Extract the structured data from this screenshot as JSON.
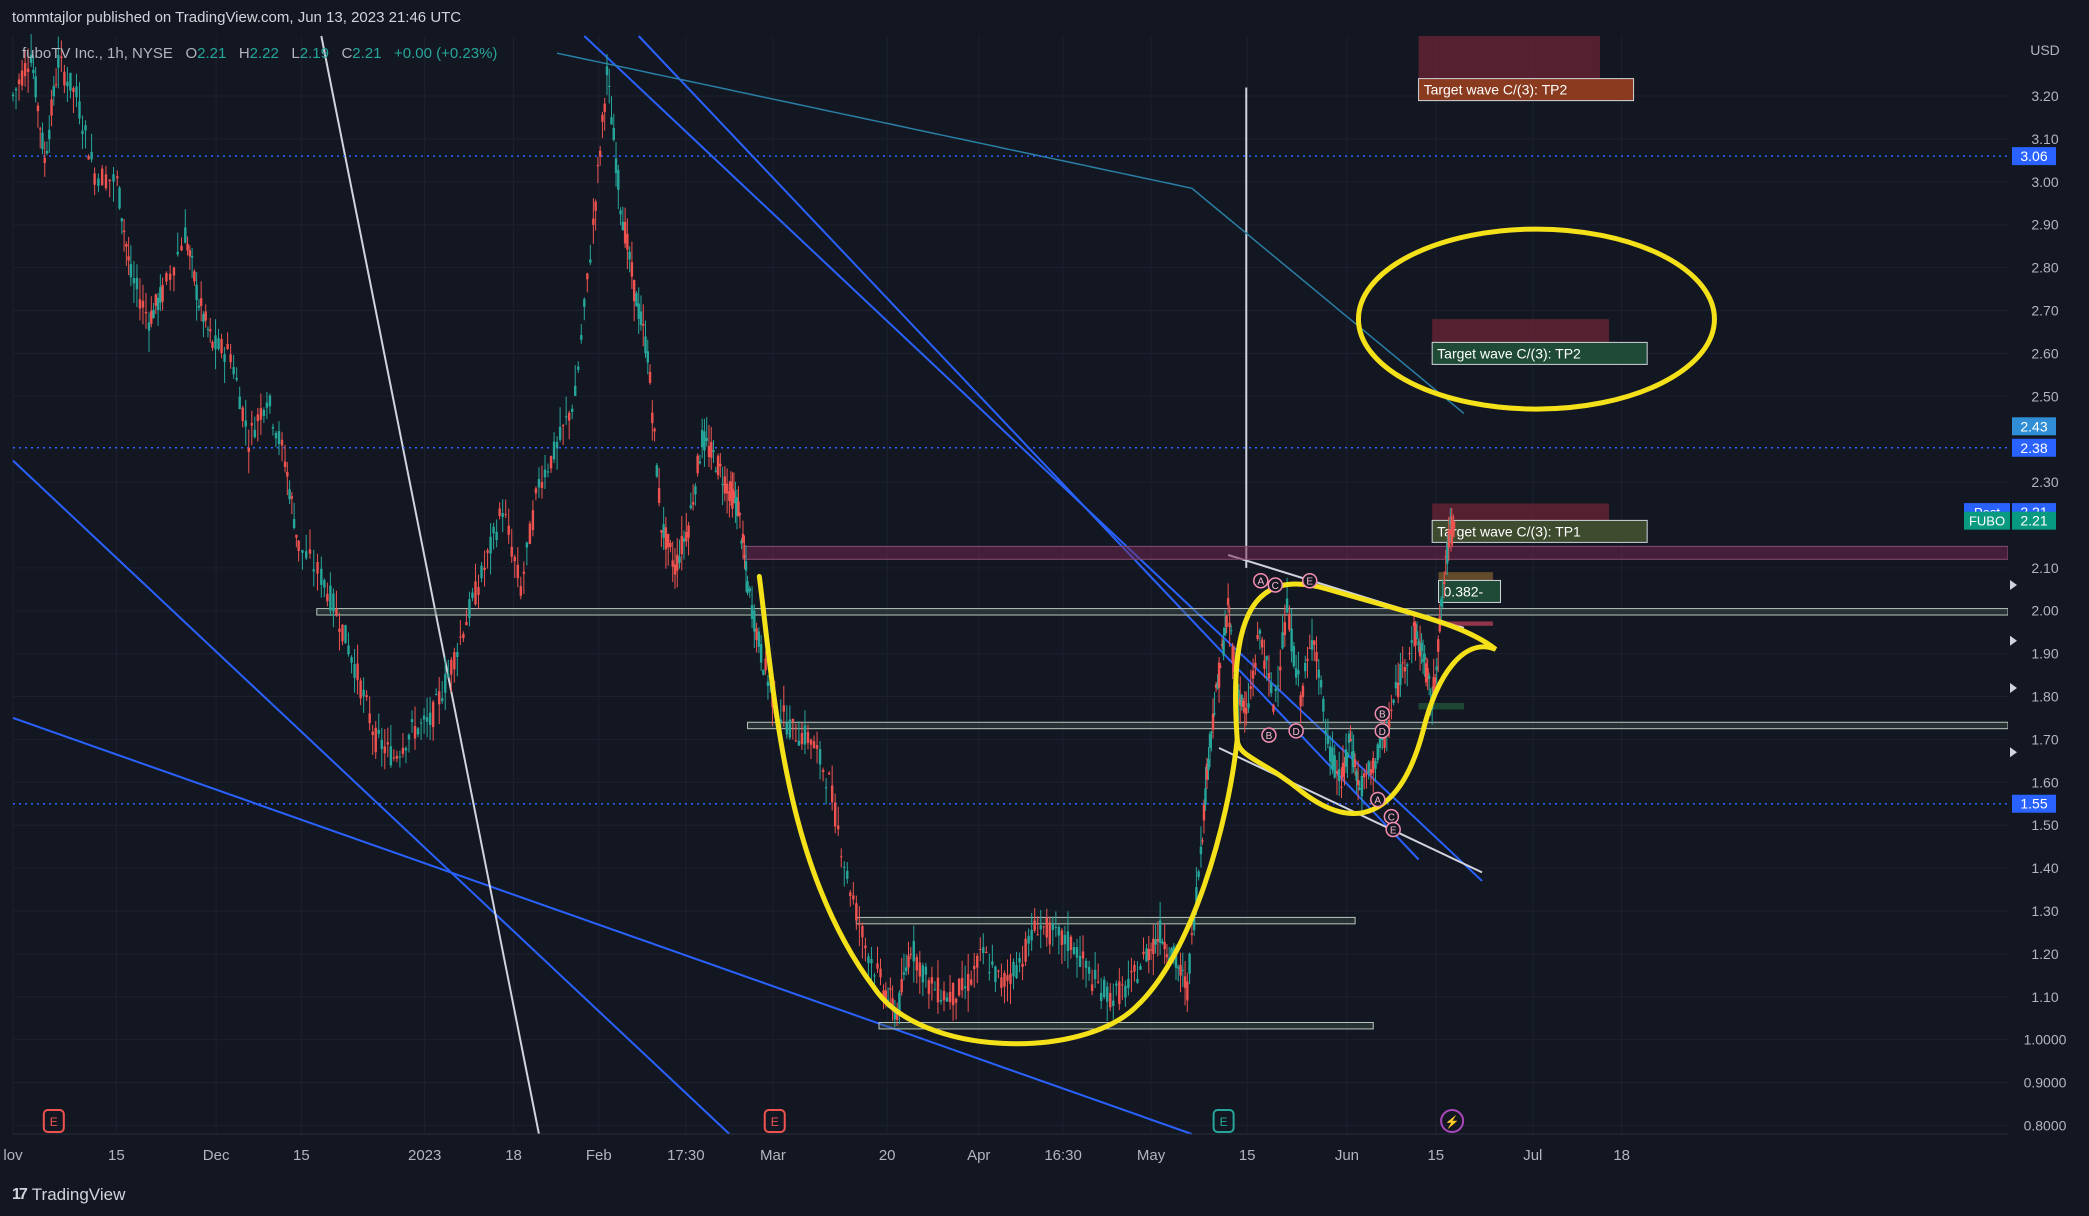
{
  "header": {
    "publisher": "tommtajlor published on TradingView.com, Jun 13, 2023 21:46 UTC"
  },
  "legend": {
    "symbol": "fuboTV Inc., 1h, NYSE",
    "o_label": "O",
    "o": "2.21",
    "h_label": "H",
    "h": "2.22",
    "l_label": "L",
    "l": "2.19",
    "c_label": "C",
    "c": "2.21",
    "change": "+0.00 (+0.23%)"
  },
  "footer": {
    "brand": "TradingView"
  },
  "chart_data": {
    "type": "candlestick",
    "currency": "USD",
    "ylim": [
      0.78,
      3.34
    ],
    "y_ticks": [
      "3.20",
      "3.10",
      "3.00",
      "2.90",
      "2.80",
      "2.70",
      "2.60",
      "2.50",
      "2.30",
      "2.10",
      "2.00",
      "1.90",
      "1.80",
      "1.70",
      "1.60",
      "1.50",
      "1.40",
      "1.30",
      "1.20",
      "1.10",
      "1.0000",
      "0.9000",
      "0.8000"
    ],
    "x_ticks": [
      {
        "label": "lov",
        "x": 0.0
      },
      {
        "label": "15",
        "x": 0.114
      },
      {
        "label": "Dec",
        "x": 0.224
      },
      {
        "label": "15",
        "x": 0.318
      },
      {
        "label": "2023",
        "x": 0.454
      },
      {
        "label": "18",
        "x": 0.552
      },
      {
        "label": "Feb",
        "x": 0.646
      },
      {
        "label": "17:30",
        "x": 0.742
      },
      {
        "label": "Mar",
        "x": 0.838
      },
      {
        "label": "20",
        "x": 0.964
      },
      {
        "label": "Apr",
        "x": 1.065
      },
      {
        "label": "16:30",
        "x": 1.158
      },
      {
        "label": "May",
        "x": 1.255
      },
      {
        "label": "15",
        "x": 1.361
      },
      {
        "label": "Jun",
        "x": 1.471
      },
      {
        "label": "15",
        "x": 1.569
      },
      {
        "label": "Jul",
        "x": 1.676
      },
      {
        "label": "18",
        "x": 1.774
      }
    ],
    "price_path": [
      [
        0.0,
        3.2
      ],
      [
        0.02,
        3.3
      ],
      [
        0.035,
        3.05
      ],
      [
        0.05,
        3.28
      ],
      [
        0.07,
        3.2
      ],
      [
        0.09,
        3.02
      ],
      [
        0.115,
        3.0
      ],
      [
        0.13,
        2.78
      ],
      [
        0.15,
        2.68
      ],
      [
        0.165,
        2.74
      ],
      [
        0.19,
        2.88
      ],
      [
        0.205,
        2.72
      ],
      [
        0.22,
        2.62
      ],
      [
        0.24,
        2.6
      ],
      [
        0.26,
        2.4
      ],
      [
        0.28,
        2.5
      ],
      [
        0.3,
        2.35
      ],
      [
        0.315,
        2.15
      ],
      [
        0.34,
        2.08
      ],
      [
        0.36,
        1.98
      ],
      [
        0.38,
        1.85
      ],
      [
        0.4,
        1.7
      ],
      [
        0.42,
        1.66
      ],
      [
        0.44,
        1.72
      ],
      [
        0.46,
        1.74
      ],
      [
        0.48,
        1.85
      ],
      [
        0.5,
        1.98
      ],
      [
        0.52,
        2.1
      ],
      [
        0.54,
        2.24
      ],
      [
        0.56,
        2.05
      ],
      [
        0.58,
        2.3
      ],
      [
        0.6,
        2.38
      ],
      [
        0.62,
        2.5
      ],
      [
        0.64,
        2.9
      ],
      [
        0.655,
        3.25
      ],
      [
        0.67,
        2.95
      ],
      [
        0.685,
        2.75
      ],
      [
        0.7,
        2.6
      ],
      [
        0.715,
        2.2
      ],
      [
        0.73,
        2.1
      ],
      [
        0.745,
        2.2
      ],
      [
        0.76,
        2.4
      ],
      [
        0.775,
        2.35
      ],
      [
        0.79,
        2.28
      ],
      [
        0.8,
        2.24
      ],
      [
        0.81,
        2.06
      ],
      [
        0.825,
        1.9
      ],
      [
        0.84,
        1.78
      ],
      [
        0.86,
        1.72
      ],
      [
        0.88,
        1.7
      ],
      [
        0.9,
        1.6
      ],
      [
        0.92,
        1.38
      ],
      [
        0.94,
        1.22
      ],
      [
        0.96,
        1.12
      ],
      [
        0.975,
        1.06
      ],
      [
        0.99,
        1.22
      ],
      [
        1.01,
        1.13
      ],
      [
        1.03,
        1.1
      ],
      [
        1.05,
        1.12
      ],
      [
        1.07,
        1.2
      ],
      [
        1.09,
        1.13
      ],
      [
        1.11,
        1.18
      ],
      [
        1.13,
        1.27
      ],
      [
        1.15,
        1.24
      ],
      [
        1.17,
        1.22
      ],
      [
        1.19,
        1.14
      ],
      [
        1.21,
        1.1
      ],
      [
        1.23,
        1.12
      ],
      [
        1.25,
        1.2
      ],
      [
        1.265,
        1.25
      ],
      [
        1.28,
        1.19
      ],
      [
        1.295,
        1.12
      ],
      [
        1.31,
        1.45
      ],
      [
        1.32,
        1.7
      ],
      [
        1.33,
        1.85
      ],
      [
        1.34,
        2.0
      ],
      [
        1.35,
        1.82
      ],
      [
        1.36,
        1.75
      ],
      [
        1.375,
        1.95
      ],
      [
        1.39,
        1.78
      ],
      [
        1.405,
        2.0
      ],
      [
        1.42,
        1.8
      ],
      [
        1.435,
        1.95
      ],
      [
        1.45,
        1.68
      ],
      [
        1.465,
        1.6
      ],
      [
        1.475,
        1.7
      ],
      [
        1.485,
        1.58
      ],
      [
        1.5,
        1.64
      ],
      [
        1.515,
        1.72
      ],
      [
        1.53,
        1.85
      ],
      [
        1.545,
        1.95
      ],
      [
        1.555,
        1.9
      ],
      [
        1.565,
        1.78
      ],
      [
        1.575,
        2.0
      ],
      [
        1.585,
        2.2
      ],
      [
        1.59,
        2.21
      ]
    ],
    "horizontal_levels": [
      {
        "price": 3.06,
        "label": "3.06",
        "color": "#2962ff"
      },
      {
        "price": 2.38,
        "label": "2.38",
        "color": "#2962ff"
      },
      {
        "price": 1.55,
        "label": "1.55",
        "color": "#2962ff"
      }
    ],
    "price_labels": [
      {
        "price": 2.43,
        "label": "2.43",
        "color": "#2f8ed6"
      },
      {
        "price": 2.23,
        "label": "2.21",
        "tag": "Post",
        "color": "#2962ff"
      },
      {
        "price": 2.21,
        "label": "2.21",
        "tag": "FUBO",
        "color": "#089981"
      }
    ],
    "targets": [
      "Target wave C/(3): TP2",
      "Target wave C/(3): TP2",
      "Target wave C/(3): TP1"
    ],
    "fib_label": "0.382-",
    "wave_labels": [
      "A",
      "C",
      "E",
      "B",
      "D",
      "B",
      "A",
      "D",
      "C",
      "E",
      "B",
      "D"
    ]
  }
}
